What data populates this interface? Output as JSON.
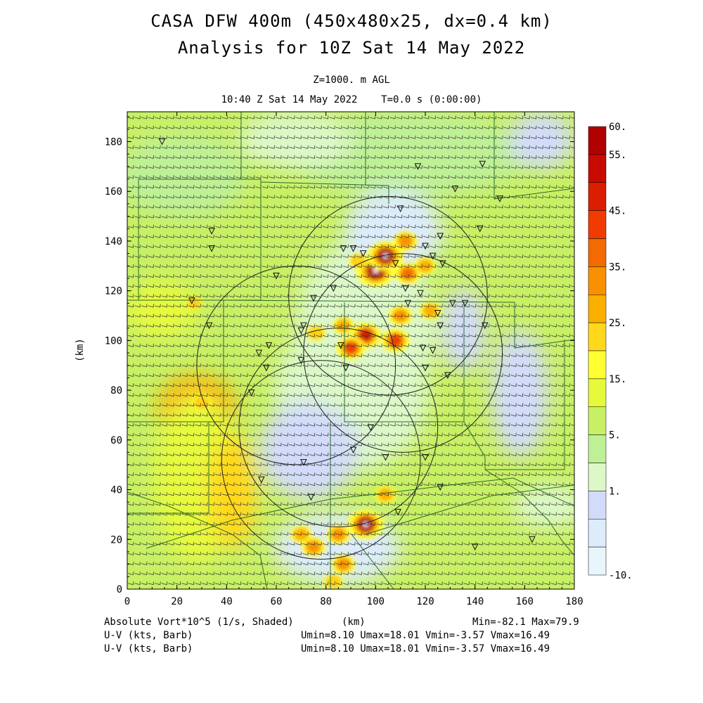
{
  "header": {
    "title": "CASA DFW 400m (450x480x25, dx=0.4 km)",
    "subtitle": "Analysis for 10Z Sat 14 May 2022",
    "level": "Z=1000. m AGL",
    "valid_time": "10:40 Z Sat 14 May 2022    T=0.0 s (0:00:00)"
  },
  "footer": {
    "field_label": "Absolute Vort*10^5 (1/s, Shaded)",
    "x_unit": "(km)",
    "minmax": "Min=-82.1 Max=79.9",
    "barb1_label": "U-V (kts, Barb)",
    "barb1_stats": "Umin=8.10 Umax=18.01 Vmin=-3.57 Vmax=16.49",
    "barb2_label": "U-V (kts, Barb)",
    "barb2_stats": "Umin=8.10 Umax=18.01 Vmin=-3.57 Vmax=16.49"
  },
  "chart_data": {
    "type": "heatmap",
    "xlabel": "(km)",
    "ylabel": "(km)",
    "xlim": [
      0,
      180
    ],
    "ylim": [
      0,
      192
    ],
    "xticks": [
      0,
      20,
      40,
      60,
      80,
      100,
      120,
      140,
      160,
      180
    ],
    "yticks": [
      0,
      20,
      40,
      60,
      80,
      100,
      120,
      140,
      160,
      180
    ],
    "colorbar": {
      "labels": [
        "60.",
        "55.",
        "45.",
        "35.",
        "25.",
        "15.",
        "5.",
        "1.",
        "-10."
      ],
      "colors": [
        "#b00000",
        "#c80a00",
        "#dc1e00",
        "#f03c00",
        "#f26a00",
        "#f89000",
        "#fbb000",
        "#ffd81e",
        "#ffff32",
        "#e6fa3c",
        "#c8f064",
        "#bef096",
        "#dcf8c8",
        "#d2dcfa",
        "#dcecfa",
        "#e8f6fc"
      ]
    },
    "radar_rings": [
      {
        "center": [
          78,
          52
        ],
        "radius": 40
      },
      {
        "center": [
          105,
          118
        ],
        "radius": 40
      },
      {
        "center": [
          68,
          90
        ],
        "radius": 40
      },
      {
        "center": [
          85,
          65
        ],
        "radius": 40
      },
      {
        "center": [
          111,
          95
        ],
        "radius": 40
      }
    ],
    "vorticity_maxima": [
      {
        "x": 100,
        "y": 128,
        "value": 60
      },
      {
        "x": 104,
        "y": 134,
        "value": 55
      },
      {
        "x": 96,
        "y": 26,
        "value": 55
      },
      {
        "x": 96,
        "y": 102,
        "value": 45
      },
      {
        "x": 90,
        "y": 97,
        "value": 40
      },
      {
        "x": 108,
        "y": 100,
        "value": 40
      },
      {
        "x": 113,
        "y": 127,
        "value": 35
      },
      {
        "x": 110,
        "y": 110,
        "value": 30
      },
      {
        "x": 85,
        "y": 22,
        "value": 30
      },
      {
        "x": 87,
        "y": 10,
        "value": 30
      },
      {
        "x": 75,
        "y": 17,
        "value": 30
      },
      {
        "x": 70,
        "y": 22,
        "value": 25
      },
      {
        "x": 83,
        "y": 3,
        "value": 20
      },
      {
        "x": 104,
        "y": 38,
        "value": 25
      },
      {
        "x": 122,
        "y": 112,
        "value": 25
      },
      {
        "x": 87,
        "y": 106,
        "value": 25
      },
      {
        "x": 76,
        "y": 103,
        "value": 20
      },
      {
        "x": 93,
        "y": 132,
        "value": 20
      },
      {
        "x": 112,
        "y": 140,
        "value": 30
      },
      {
        "x": 120,
        "y": 130,
        "value": 25
      },
      {
        "x": 30,
        "y": 75,
        "value": 20
      },
      {
        "x": 27,
        "y": 115,
        "value": 15
      }
    ],
    "stations": [
      [
        14,
        180
      ],
      [
        117,
        170
      ],
      [
        143,
        171
      ],
      [
        132,
        161
      ],
      [
        150,
        157
      ],
      [
        110,
        153
      ],
      [
        34,
        144
      ],
      [
        34,
        137
      ],
      [
        142,
        145
      ],
      [
        87,
        137
      ],
      [
        91,
        137
      ],
      [
        95,
        135
      ],
      [
        126,
        142
      ],
      [
        120,
        138
      ],
      [
        123,
        134
      ],
      [
        127,
        131
      ],
      [
        108,
        131
      ],
      [
        60,
        126
      ],
      [
        83,
        121
      ],
      [
        112,
        121
      ],
      [
        118,
        119
      ],
      [
        136,
        115
      ],
      [
        26,
        116
      ],
      [
        75,
        117
      ],
      [
        113,
        115
      ],
      [
        131,
        115
      ],
      [
        125,
        111
      ],
      [
        33,
        106
      ],
      [
        126,
        106
      ],
      [
        144,
        106
      ],
      [
        70,
        104
      ],
      [
        71,
        106
      ],
      [
        57,
        98
      ],
      [
        86,
        98
      ],
      [
        119,
        97
      ],
      [
        123,
        96
      ],
      [
        120,
        89
      ],
      [
        129,
        86
      ],
      [
        50,
        79
      ],
      [
        56,
        89
      ],
      [
        53,
        95
      ],
      [
        70,
        92
      ],
      [
        88,
        89
      ],
      [
        98,
        65
      ],
      [
        91,
        56
      ],
      [
        104,
        53
      ],
      [
        120,
        53
      ],
      [
        71,
        51
      ],
      [
        54,
        44
      ],
      [
        74,
        37
      ],
      [
        126,
        41
      ],
      [
        109,
        31
      ],
      [
        140,
        17
      ],
      [
        163,
        20
      ]
    ],
    "barbs": {
      "u_range": [
        8.1,
        18.01
      ],
      "v_range": [
        -3.57,
        16.49
      ],
      "units": "kts"
    }
  }
}
